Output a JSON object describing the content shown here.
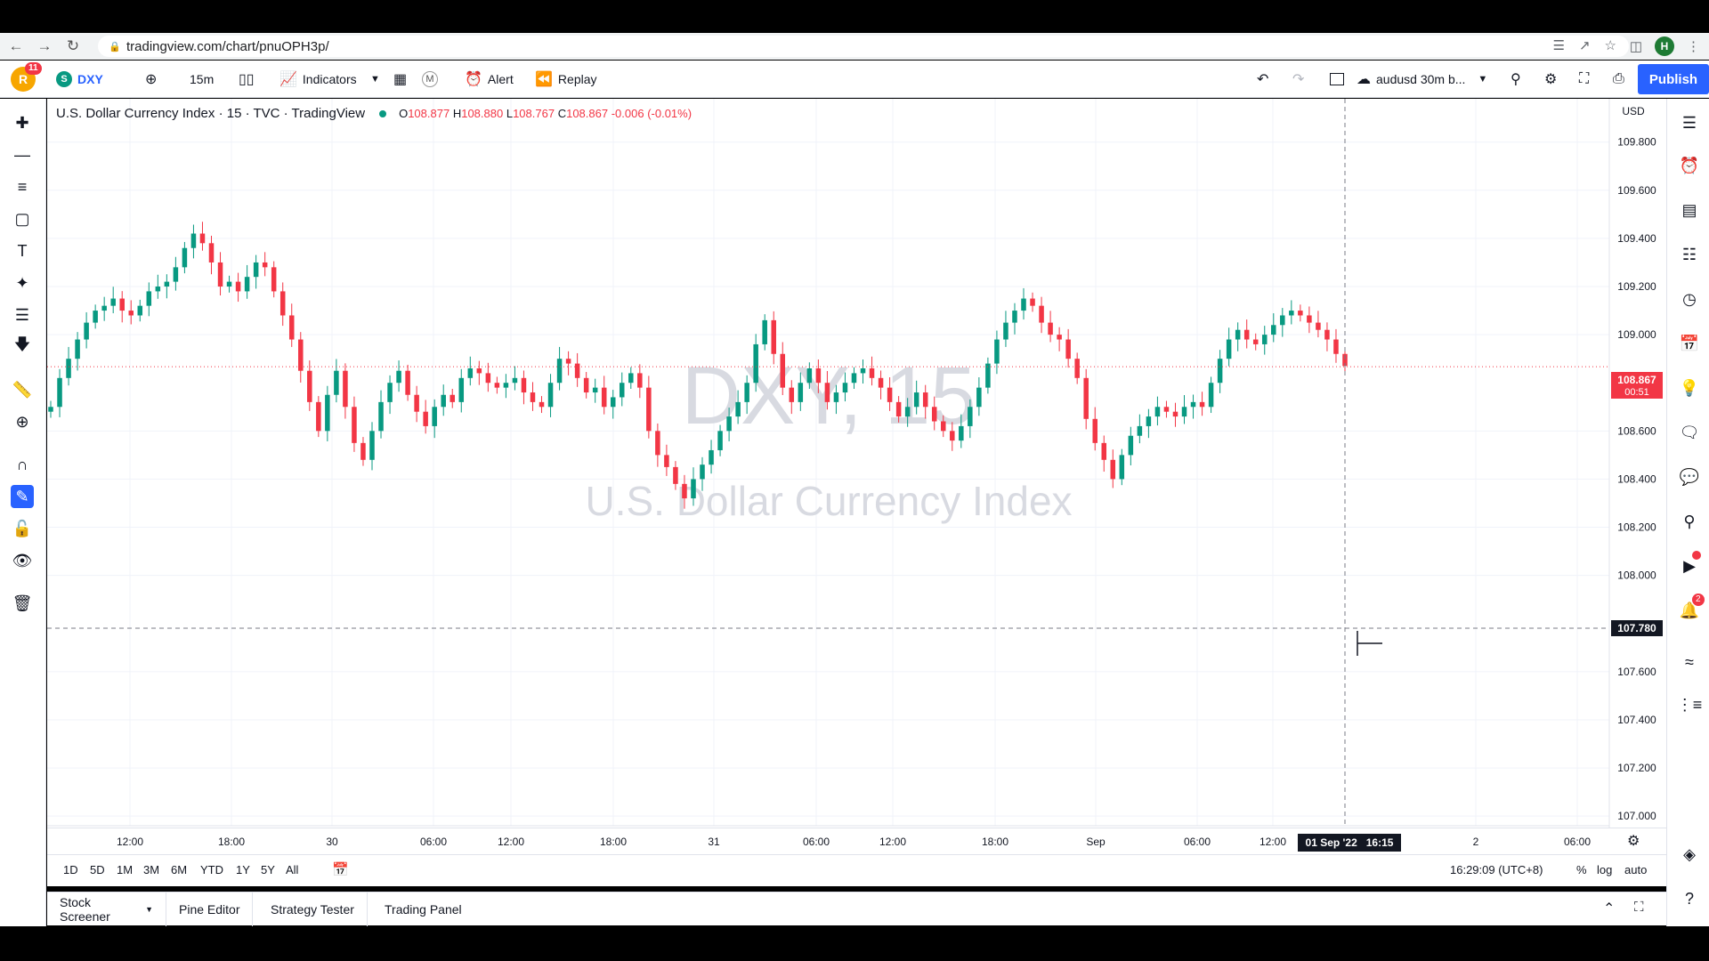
{
  "browser": {
    "url": "tradingview.com/chart/pnuOPH3p/",
    "profile_initial": "H"
  },
  "toolbar": {
    "user_badge": "11",
    "symbol": "DXY",
    "symbol_logo": "S",
    "interval": "15m",
    "indicators_label": "Indicators",
    "m_label": "M",
    "alert_label": "Alert",
    "replay_label": "Replay",
    "layout_name": "audusd 30m b...",
    "publish_label": "Publish"
  },
  "legend": {
    "title": "U.S. Dollar Currency Index · 15 · TVC · TradingView",
    "open_label": "O",
    "open": "108.877",
    "high_label": "H",
    "high": "108.880",
    "low_label": "L",
    "low": "108.767",
    "close_label": "C",
    "close": "108.867",
    "change": "-0.006 (-0.01%)"
  },
  "watermark": {
    "line1": "DXY, 15",
    "line2": "U.S. Dollar Currency Index"
  },
  "price_axis": {
    "currency": "USD",
    "ticks": [
      "109.800",
      "109.600",
      "109.400",
      "109.200",
      "109.000",
      "108.600",
      "108.400",
      "108.200",
      "108.000",
      "107.600",
      "107.400",
      "107.200",
      "107.000"
    ],
    "last_price": "108.867",
    "countdown": "00:51",
    "crosshair_price": "107.780"
  },
  "time_axis": {
    "ticks": [
      "12:00",
      "18:00",
      "30",
      "06:00",
      "12:00",
      "18:00",
      "31",
      "06:00",
      "12:00",
      "18:00",
      "Sep",
      "06:00",
      "12:00",
      "2",
      "06:00"
    ],
    "crosshair_time": "01 Sep '22   16:15"
  },
  "ranges": [
    "1D",
    "5D",
    "1M",
    "3M",
    "6M",
    "YTD",
    "1Y",
    "5Y",
    "All"
  ],
  "clock": "16:29:09 (UTC+8)",
  "scale_options": {
    "percent": "%",
    "log": "log",
    "auto": "auto"
  },
  "bottom_tabs": [
    "Stock Screener",
    "Pine Editor",
    "Strategy Tester",
    "Trading Panel"
  ],
  "right_badges": {
    "alerts": "2"
  },
  "colors": {
    "up": "#089981",
    "down": "#f23645",
    "accent": "#2962ff"
  },
  "chart_data": {
    "type": "candlestick",
    "symbol": "DXY",
    "interval": "15",
    "ylim": [
      106.96,
      109.98
    ],
    "series_close": [
      108.7,
      108.82,
      108.9,
      108.98,
      109.05,
      109.1,
      109.12,
      109.15,
      109.1,
      109.08,
      109.12,
      109.18,
      109.2,
      109.22,
      109.28,
      109.36,
      109.42,
      109.38,
      109.3,
      109.2,
      109.22,
      109.18,
      109.24,
      109.3,
      109.28,
      109.18,
      109.08,
      108.98,
      108.85,
      108.72,
      108.6,
      108.75,
      108.85,
      108.7,
      108.55,
      108.48,
      108.6,
      108.72,
      108.8,
      108.85,
      108.75,
      108.68,
      108.62,
      108.7,
      108.75,
      108.72,
      108.82,
      108.86,
      108.84,
      108.8,
      108.78,
      108.8,
      108.82,
      108.76,
      108.72,
      108.7,
      108.8,
      108.9,
      108.88,
      108.82,
      108.76,
      108.78,
      108.7,
      108.74,
      108.8,
      108.84,
      108.78,
      108.6,
      108.5,
      108.45,
      108.38,
      108.32,
      108.4,
      108.46,
      108.52,
      108.6,
      108.66,
      108.72,
      108.8,
      108.96,
      109.06,
      108.92,
      108.78,
      108.72,
      108.8,
      108.86,
      108.8,
      108.72,
      108.76,
      108.8,
      108.84,
      108.86,
      108.82,
      108.78,
      108.72,
      108.66,
      108.7,
      108.76,
      108.7,
      108.64,
      108.6,
      108.56,
      108.62,
      108.7,
      108.78,
      108.88,
      108.98,
      109.05,
      109.1,
      109.15,
      109.12,
      109.05,
      109.0,
      108.98,
      108.9,
      108.82,
      108.65,
      108.55,
      108.48,
      108.4,
      108.5,
      108.58,
      108.62,
      108.66,
      108.7,
      108.68,
      108.66,
      108.7,
      108.72,
      108.7,
      108.8,
      108.9,
      108.98,
      109.02,
      108.98,
      108.96,
      109.0,
      109.04,
      109.08,
      109.1,
      109.08,
      109.05,
      109.02,
      108.98,
      108.92,
      108.87
    ]
  }
}
